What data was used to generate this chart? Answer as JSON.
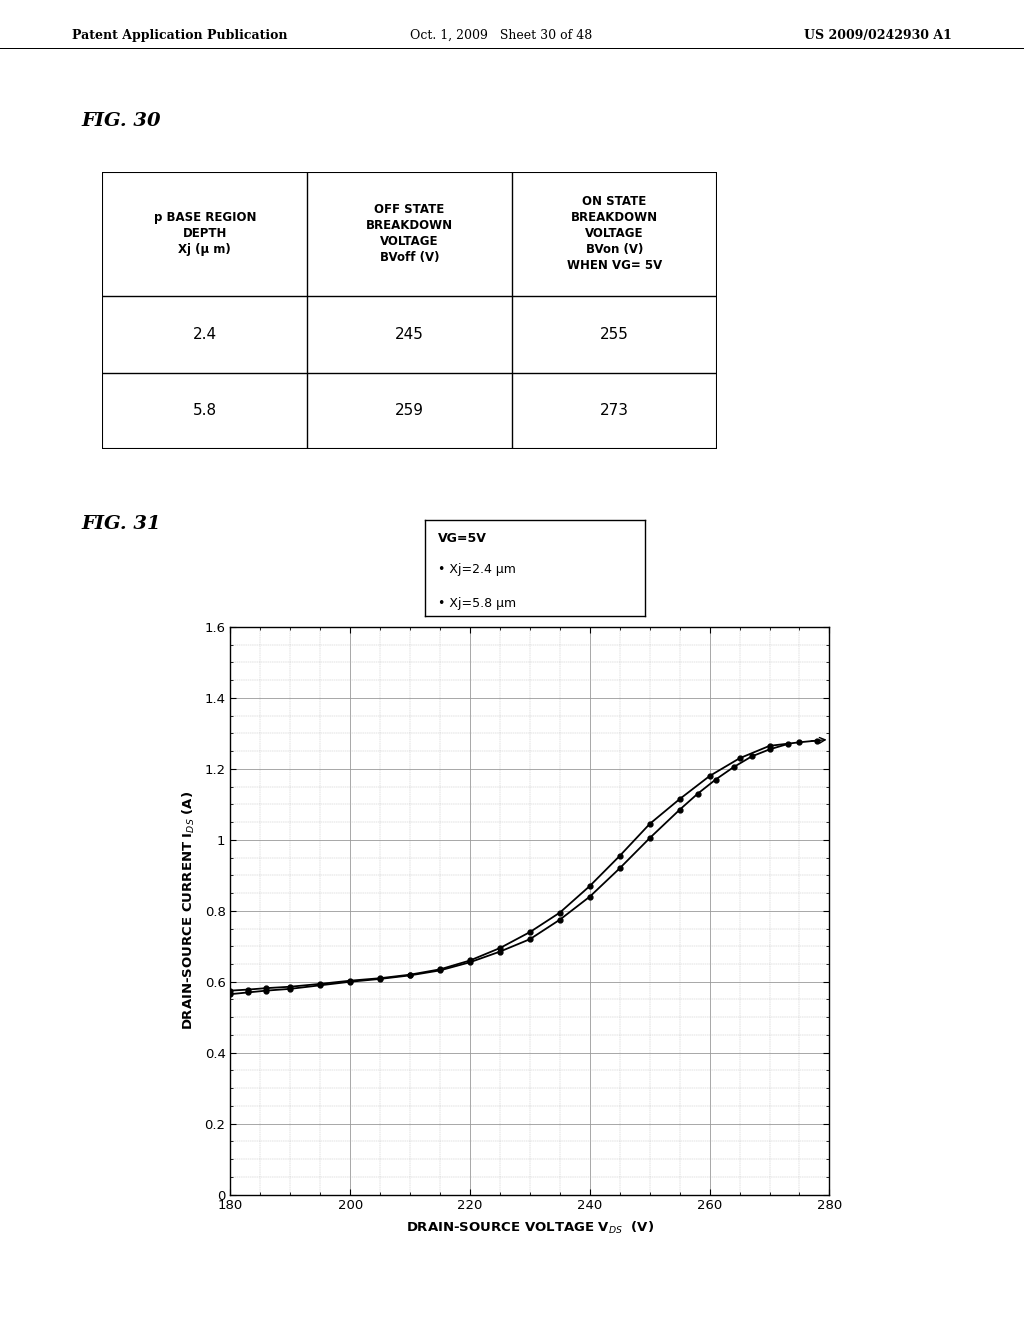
{
  "header_left": "Patent Application Publication",
  "header_center": "Oct. 1, 2009   Sheet 30 of 48",
  "header_right": "US 2009/0242930 A1",
  "fig30_label": "FIG. 30",
  "fig31_label": "FIG. 31",
  "table_headers": [
    "p BASE REGION\nDEPTH\nXj (μ m)",
    "OFF STATE\nBREAKDOWN\nVOLTAGE\nBVoff (V)",
    "ON STATE\nBREAKDOWN\nVOLTAGE\nBVon (V)\nWHEN VG= 5V"
  ],
  "table_rows": [
    [
      "2.4",
      "245",
      "255"
    ],
    [
      "5.8",
      "259",
      "273"
    ]
  ],
  "xlim": [
    180,
    280
  ],
  "ylim": [
    0,
    1.6
  ],
  "xticks": [
    180,
    200,
    220,
    240,
    260,
    280
  ],
  "yticks": [
    0,
    0.2,
    0.4,
    0.6,
    0.8,
    1.0,
    1.2,
    1.4,
    1.6
  ],
  "ytick_labels": [
    "0",
    "0.2",
    "0.4",
    "0.6",
    "0.8",
    "1",
    "1.2",
    "1.4",
    "1.6"
  ],
  "curve1_x": [
    180,
    183,
    186,
    190,
    195,
    200,
    205,
    210,
    215,
    220,
    225,
    230,
    235,
    240,
    245,
    250,
    255,
    258,
    261,
    264,
    267,
    270,
    273
  ],
  "curve1_y": [
    0.565,
    0.57,
    0.575,
    0.58,
    0.59,
    0.6,
    0.608,
    0.618,
    0.632,
    0.655,
    0.685,
    0.72,
    0.775,
    0.84,
    0.92,
    1.005,
    1.085,
    1.13,
    1.17,
    1.205,
    1.235,
    1.255,
    1.27
  ],
  "curve2_x": [
    180,
    183,
    186,
    190,
    195,
    200,
    205,
    210,
    215,
    220,
    225,
    230,
    235,
    240,
    245,
    250,
    255,
    260,
    265,
    270,
    275,
    278
  ],
  "curve2_y": [
    0.575,
    0.578,
    0.582,
    0.586,
    0.594,
    0.603,
    0.61,
    0.62,
    0.635,
    0.66,
    0.695,
    0.74,
    0.795,
    0.87,
    0.955,
    1.045,
    1.115,
    1.18,
    1.23,
    1.265,
    1.275,
    1.28
  ],
  "bg_color": "#ffffff",
  "grid_major_color": "#999999",
  "grid_minor_color": "#bbbbbb",
  "curve_color": "#000000"
}
